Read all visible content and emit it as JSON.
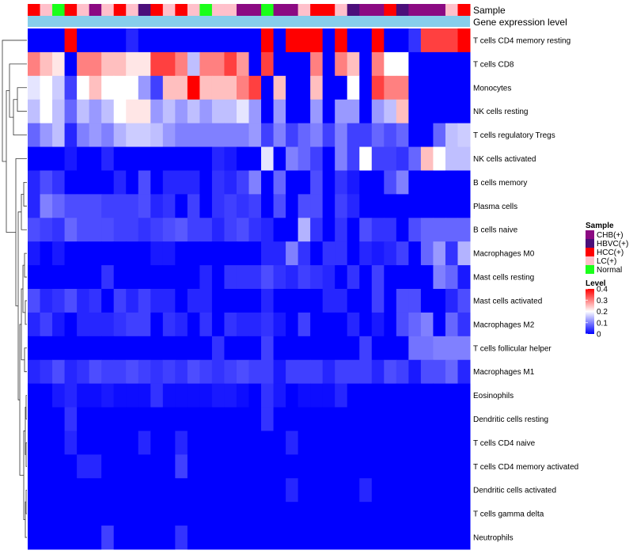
{
  "chart_data": {
    "type": "heatmap",
    "title": "",
    "top_annotations": [
      "Sample",
      "Gene expression level"
    ],
    "rows": [
      "T cells CD4 memory resting",
      "T cells CD8",
      "Monocytes",
      "NK cells resting",
      "T cells regulatory  Tregs",
      "NK cells activated",
      "B cells memory",
      "Plasma cells",
      "B cells naive",
      "Macrophages M0",
      "Mast cells resting",
      "Mast cells activated",
      "Macrophages M2",
      "T cells follicular helper",
      "Macrophages M1",
      "Eosinophils",
      "Dendritic cells resting",
      "T cells CD4 naive",
      "T cells CD4 memory activated",
      "Dendritic cells activated",
      "T cells gamma delta",
      "Neutrophils"
    ],
    "column_samples": [
      "HCC(+)",
      "LC(+)",
      "Normal",
      "HCC(+)",
      "LC(+)",
      "CHB(+)",
      "LC(+)",
      "HCC(+)",
      "LC(+)",
      "HBVC(+)",
      "HCC(+)",
      "LC(+)",
      "HCC(+)",
      "LC(+)",
      "Normal",
      "LC(+)",
      "LC(+)",
      "CHB(+)",
      "CHB(+)",
      "Normal",
      "CHB(+)",
      "CHB(+)",
      "LC(+)",
      "HCC(+)",
      "HCC(+)",
      "LC(+)",
      "HBVC(+)",
      "CHB(+)",
      "CHB(+)",
      "HCC(+)",
      "HBVC(+)",
      "CHB(+)",
      "CHB(+)",
      "CHB(+)",
      "LC(+)",
      "HCC(+)"
    ],
    "values": [
      [
        0,
        0,
        0,
        0.4,
        0,
        0,
        0,
        0,
        0.03,
        0,
        0,
        0,
        0,
        0,
        0,
        0,
        0,
        0,
        0,
        0.4,
        0,
        0.4,
        0.4,
        0.4,
        0,
        0.4,
        0,
        0,
        0.4,
        0,
        0,
        0.04,
        0.35,
        0.35,
        0.35,
        0.4
      ],
      [
        0.3,
        0.25,
        0.22,
        0,
        0.3,
        0.3,
        0.25,
        0.25,
        0.22,
        0.22,
        0.35,
        0.35,
        0.3,
        0.15,
        0.3,
        0.3,
        0.35,
        0.28,
        0,
        0.35,
        0,
        0,
        0,
        0.3,
        0,
        0.3,
        0.25,
        0,
        0.3,
        0.2,
        0.2,
        0,
        0,
        0,
        0,
        0
      ],
      [
        0.18,
        0.2,
        0.16,
        0.05,
        0.2,
        0.25,
        0.2,
        0.2,
        0.2,
        0.12,
        0.05,
        0.25,
        0.25,
        0.4,
        0.25,
        0.25,
        0.25,
        0.3,
        0.35,
        0,
        0.25,
        0,
        0,
        0.25,
        0,
        0,
        0.2,
        0,
        0.35,
        0.3,
        0.3,
        0,
        0,
        0,
        0,
        0
      ],
      [
        0.15,
        0.2,
        0.15,
        0.08,
        0.15,
        0.12,
        0.15,
        0.2,
        0.22,
        0.22,
        0.12,
        0.15,
        0.12,
        0.15,
        0.12,
        0.15,
        0.15,
        0.18,
        0.12,
        0,
        0.12,
        0,
        0,
        0.12,
        0,
        0.12,
        0.12,
        0,
        0.12,
        0.15,
        0.25,
        0,
        0,
        0,
        0,
        0
      ],
      [
        0.08,
        0.12,
        0.15,
        0.03,
        0.1,
        0.12,
        0.1,
        0.14,
        0.16,
        0.16,
        0.15,
        0.12,
        0.1,
        0.1,
        0.1,
        0.1,
        0.1,
        0.1,
        0.12,
        0.05,
        0.1,
        0.05,
        0.08,
        0.1,
        0.05,
        0.1,
        0.05,
        0.05,
        0.08,
        0.06,
        0.08,
        0,
        0,
        0.08,
        0.15,
        0.16
      ],
      [
        0,
        0,
        0,
        0.02,
        0,
        0,
        0.03,
        0,
        0,
        0,
        0,
        0,
        0,
        0,
        0,
        0.03,
        0.02,
        0,
        0,
        0.18,
        0,
        0.1,
        0.08,
        0.05,
        0,
        0.1,
        0.05,
        0.2,
        0.05,
        0.05,
        0.04,
        0.08,
        0.25,
        0.2,
        0.15,
        0.15
      ],
      [
        0.03,
        0.06,
        0.04,
        0,
        0,
        0,
        0,
        0.03,
        0,
        0.06,
        0,
        0.03,
        0.03,
        0.03,
        0,
        0.04,
        0.03,
        0.05,
        0.1,
        0,
        0.08,
        0,
        0,
        0.06,
        0,
        0.04,
        0.02,
        0,
        0,
        0.06,
        0.1,
        0,
        0,
        0,
        0,
        0
      ],
      [
        0.03,
        0.1,
        0.08,
        0.06,
        0.06,
        0.06,
        0.05,
        0.05,
        0.05,
        0.06,
        0.03,
        0.04,
        0,
        0.05,
        0,
        0.04,
        0.05,
        0.04,
        0.05,
        0,
        0.06,
        0,
        0.06,
        0.06,
        0,
        0.05,
        0.03,
        0,
        0,
        0,
        0,
        0,
        0,
        0,
        0,
        0
      ],
      [
        0.06,
        0.05,
        0.04,
        0.08,
        0.06,
        0.06,
        0.06,
        0.05,
        0.05,
        0.04,
        0.05,
        0.06,
        0.07,
        0.05,
        0.05,
        0.03,
        0.05,
        0.06,
        0.04,
        0.03,
        0,
        0,
        0.14,
        0.04,
        0,
        0.04,
        0,
        0.06,
        0.04,
        0.04,
        0,
        0.06,
        0.08,
        0.08,
        0.08,
        0.08
      ],
      [
        0.02,
        0,
        0.02,
        0,
        0,
        0,
        0,
        0,
        0,
        0,
        0.02,
        0.02,
        0,
        0,
        0,
        0,
        0,
        0,
        0,
        0.03,
        0.03,
        0.1,
        0.04,
        0,
        0.04,
        0.04,
        0,
        0.03,
        0.02,
        0.03,
        0.05,
        0,
        0.08,
        0.12,
        0.04,
        0.14
      ],
      [
        0,
        0,
        0,
        0,
        0,
        0,
        0.04,
        0,
        0,
        0,
        0,
        0,
        0,
        0,
        0.03,
        0,
        0.04,
        0.04,
        0.04,
        0.06,
        0.04,
        0.03,
        0.05,
        0.04,
        0.03,
        0,
        0.04,
        0,
        0.05,
        0,
        0,
        0,
        0,
        0.1,
        0.08,
        0.02
      ],
      [
        0.06,
        0.03,
        0.04,
        0.06,
        0.03,
        0.04,
        0,
        0.05,
        0.03,
        0.05,
        0.03,
        0.03,
        0,
        0.03,
        0.03,
        0,
        0,
        0,
        0,
        0.03,
        0,
        0,
        0,
        0,
        0.03,
        0.03,
        0,
        0,
        0.05,
        0,
        0.06,
        0.06,
        0,
        0,
        0.03,
        0.06
      ],
      [
        0.03,
        0.05,
        0.02,
        0,
        0.03,
        0.03,
        0.03,
        0.04,
        0.05,
        0.05,
        0,
        0.04,
        0.03,
        0,
        0.04,
        0,
        0.04,
        0.03,
        0.03,
        0.04,
        0.02,
        0,
        0.05,
        0,
        0,
        0,
        0.03,
        0,
        0.02,
        0,
        0.06,
        0.08,
        0.1,
        0,
        0.08,
        0.04
      ],
      [
        0,
        0,
        0,
        0,
        0,
        0,
        0,
        0,
        0,
        0,
        0,
        0,
        0,
        0,
        0,
        0.04,
        0,
        0,
        0,
        0.05,
        0,
        0,
        0,
        0,
        0,
        0,
        0,
        0.05,
        0,
        0,
        0,
        0.09,
        0.09,
        0.1,
        0.1,
        0.1
      ],
      [
        0.03,
        0.04,
        0.06,
        0.03,
        0.04,
        0.06,
        0.05,
        0.05,
        0.06,
        0.05,
        0.04,
        0.05,
        0.04,
        0.06,
        0.05,
        0.04,
        0.05,
        0.06,
        0.05,
        0.05,
        0.02,
        0.05,
        0.05,
        0.05,
        0.03,
        0.05,
        0.05,
        0.05,
        0.03,
        0.06,
        0.05,
        0.02,
        0.06,
        0.06,
        0.08,
        0.03
      ],
      [
        0,
        0,
        0.02,
        0.03,
        0.01,
        0.01,
        0.02,
        0.01,
        0.01,
        0.01,
        0.04,
        0.01,
        0.01,
        0.01,
        0.01,
        0.02,
        0.02,
        0.01,
        0,
        0.04,
        0.02,
        0,
        0.01,
        0.01,
        0.01,
        0.03,
        0,
        0,
        0,
        0,
        0,
        0,
        0,
        0,
        0,
        0
      ],
      [
        0,
        0,
        0,
        0.04,
        0,
        0,
        0,
        0,
        0,
        0,
        0,
        0,
        0,
        0,
        0,
        0,
        0,
        0,
        0,
        0.04,
        0,
        0,
        0,
        0,
        0,
        0,
        0,
        0,
        0,
        0,
        0,
        0,
        0,
        0,
        0,
        0
      ],
      [
        0,
        0,
        0,
        0.03,
        0,
        0,
        0,
        0,
        0,
        0.03,
        0,
        0,
        0.03,
        0,
        0,
        0,
        0,
        0,
        0,
        0,
        0,
        0.03,
        0,
        0,
        0,
        0,
        0,
        0,
        0,
        0,
        0,
        0,
        0,
        0,
        0,
        0
      ],
      [
        0,
        0,
        0,
        0,
        0.03,
        0.03,
        0,
        0,
        0,
        0,
        0,
        0,
        0.05,
        0,
        0,
        0,
        0,
        0,
        0,
        0,
        0,
        0,
        0,
        0,
        0,
        0,
        0,
        0,
        0,
        0,
        0,
        0,
        0,
        0,
        0,
        0
      ],
      [
        0,
        0,
        0,
        0,
        0,
        0,
        0,
        0,
        0,
        0,
        0,
        0,
        0,
        0,
        0,
        0,
        0,
        0,
        0,
        0,
        0,
        0.03,
        0,
        0,
        0,
        0,
        0,
        0.03,
        0,
        0,
        0,
        0,
        0,
        0,
        0,
        0
      ],
      [
        0,
        0,
        0,
        0,
        0,
        0,
        0,
        0,
        0,
        0,
        0,
        0,
        0,
        0,
        0,
        0,
        0,
        0,
        0,
        0,
        0,
        0,
        0,
        0,
        0,
        0,
        0,
        0,
        0,
        0,
        0,
        0,
        0,
        0,
        0,
        0
      ],
      [
        0,
        0,
        0,
        0,
        0,
        0,
        0.05,
        0,
        0,
        0,
        0,
        0,
        0.04,
        0,
        0,
        0,
        0,
        0,
        0,
        0,
        0,
        0,
        0,
        0,
        0,
        0,
        0,
        0,
        0,
        0,
        0,
        0,
        0,
        0,
        0,
        0
      ]
    ],
    "legend": {
      "sample_title": "Sample",
      "sample_groups": [
        {
          "name": "CHB(+)",
          "color": "#8b0a82"
        },
        {
          "name": "HBVC(+)",
          "color": "#4b0f7a"
        },
        {
          "name": "HCC(+)",
          "color": "#ff0000"
        },
        {
          "name": "LC(+)",
          "color": "#ffc0cb"
        },
        {
          "name": "Normal",
          "color": "#1aff1a"
        }
      ],
      "level_title": "Level",
      "level_ticks": [
        "0.4",
        "0.3",
        "0.2",
        "0.1",
        "0"
      ],
      "level_range": [
        0,
        0.4
      ]
    },
    "gene_expression_color": "#87ceeb",
    "colors": {
      "low": "#0000ff",
      "mid": "#ffffff",
      "high": "#ff0000"
    }
  }
}
